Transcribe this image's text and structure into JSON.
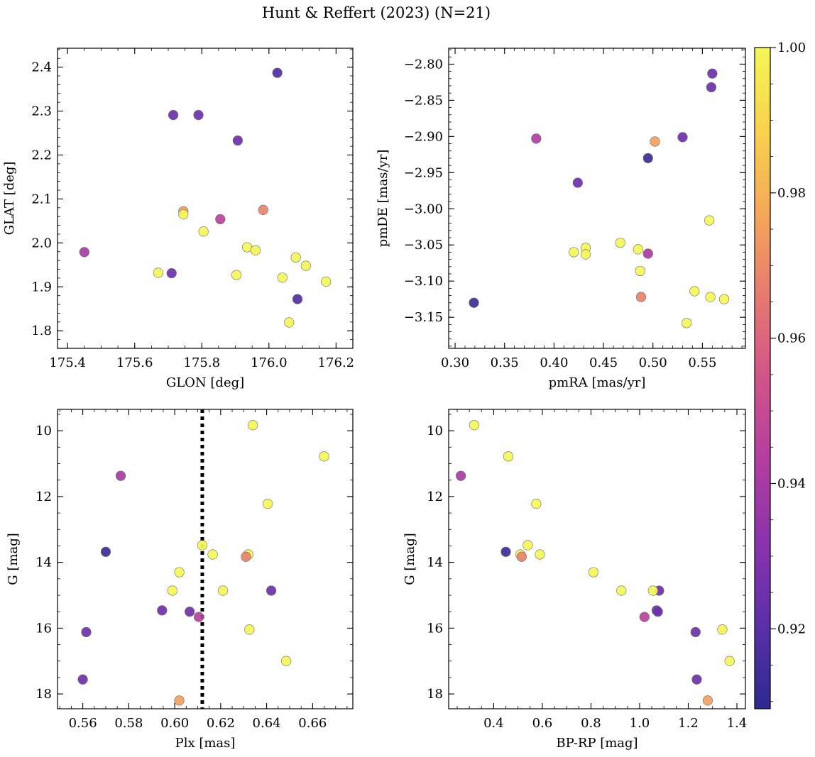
{
  "figure": {
    "title": "Hunt & Reffert (2023) (N=21)",
    "colorbar": {
      "vmin": 0.909,
      "vmax": 1.0,
      "ticks": [
        0.92,
        0.94,
        0.96,
        0.98,
        1.0
      ],
      "tick_labels": [
        "0.92",
        "0.94",
        "0.96",
        "0.98",
        "1.00"
      ],
      "colormap": "plasma",
      "gradient_colors": [
        "#2d2a8e",
        "#5b2fa7",
        "#8a33ad",
        "#b23e9f",
        "#d0548a",
        "#e57a70",
        "#f5a85a",
        "#f8d24e",
        "#f4f757"
      ]
    }
  },
  "chart_data": [
    {
      "type": "scatter",
      "id": "glon-glat",
      "xlabel": "GLON [deg]",
      "ylabel": "GLAT [deg]",
      "xlim": [
        175.37,
        176.25
      ],
      "ylim": [
        1.76,
        2.443
      ],
      "xticks": [
        175.4,
        175.6,
        175.8,
        176.0,
        176.2
      ],
      "xtick_labels": [
        "175.4",
        "175.6",
        "175.8",
        "176.0",
        "176.2"
      ],
      "yticks": [
        1.8,
        1.9,
        2.0,
        2.1,
        2.2,
        2.3,
        2.4
      ],
      "ytick_labels": [
        "1.8",
        "1.9",
        "2.0",
        "2.1",
        "2.2",
        "2.3",
        "2.4"
      ],
      "x_minor_step": 0.05,
      "y_minor_step": 0.02,
      "points": [
        {
          "x": 176.025,
          "y": 2.387,
          "c": 0.918
        },
        {
          "x": 175.715,
          "y": 2.291,
          "c": 0.925
        },
        {
          "x": 175.79,
          "y": 2.291,
          "c": 0.925
        },
        {
          "x": 175.907,
          "y": 2.233,
          "c": 0.925
        },
        {
          "x": 175.745,
          "y": 2.072,
          "c": 0.975
        },
        {
          "x": 175.983,
          "y": 2.075,
          "c": 0.968
        },
        {
          "x": 175.745,
          "y": 2.065,
          "c": 1.0
        },
        {
          "x": 175.855,
          "y": 2.054,
          "c": 0.945
        },
        {
          "x": 175.805,
          "y": 2.026,
          "c": 1.0
        },
        {
          "x": 175.45,
          "y": 1.979,
          "c": 0.94
        },
        {
          "x": 175.935,
          "y": 1.99,
          "c": 1.0
        },
        {
          "x": 175.96,
          "y": 1.983,
          "c": 1.0
        },
        {
          "x": 176.08,
          "y": 1.967,
          "c": 1.0
        },
        {
          "x": 176.11,
          "y": 1.948,
          "c": 1.0
        },
        {
          "x": 175.67,
          "y": 1.932,
          "c": 1.0
        },
        {
          "x": 175.71,
          "y": 1.931,
          "c": 0.925
        },
        {
          "x": 175.903,
          "y": 1.927,
          "c": 1.0
        },
        {
          "x": 176.04,
          "y": 1.921,
          "c": 1.0
        },
        {
          "x": 176.17,
          "y": 1.912,
          "c": 1.0
        },
        {
          "x": 176.085,
          "y": 1.872,
          "c": 0.918
        },
        {
          "x": 176.06,
          "y": 1.819,
          "c": 1.0
        }
      ]
    },
    {
      "type": "scatter",
      "id": "pmra-pmde",
      "xlabel": "pmRA [mas/yr]",
      "ylabel": "pmDE [mas/yr]",
      "xlim": [
        0.2935,
        0.5935
      ],
      "ylim": [
        -3.193,
        -2.778
      ],
      "xticks": [
        0.3,
        0.35,
        0.4,
        0.45,
        0.5,
        0.55
      ],
      "xtick_labels": [
        "0.30",
        "0.35",
        "0.40",
        "0.45",
        "0.50",
        "0.55"
      ],
      "yticks": [
        -3.15,
        -3.1,
        -3.05,
        -3.0,
        -2.95,
        -2.9,
        -2.85,
        -2.8
      ],
      "ytick_labels": [
        "−3.15",
        "−3.10",
        "−3.05",
        "−3.00",
        "−2.95",
        "−2.90",
        "−2.85",
        "−2.80"
      ],
      "x_minor_step": 0.01,
      "y_minor_step": 0.01,
      "points": [
        {
          "x": 0.56,
          "y": -2.813,
          "c": 0.925
        },
        {
          "x": 0.559,
          "y": -2.832,
          "c": 0.925
        },
        {
          "x": 0.382,
          "y": -2.903,
          "c": 0.943
        },
        {
          "x": 0.502,
          "y": -2.907,
          "c": 0.975
        },
        {
          "x": 0.53,
          "y": -2.901,
          "c": 0.925
        },
        {
          "x": 0.495,
          "y": -2.93,
          "c": 0.913
        },
        {
          "x": 0.424,
          "y": -2.964,
          "c": 0.925
        },
        {
          "x": 0.557,
          "y": -3.016,
          "c": 1.0
        },
        {
          "x": 0.467,
          "y": -3.047,
          "c": 1.0
        },
        {
          "x": 0.432,
          "y": -3.054,
          "c": 1.0
        },
        {
          "x": 0.485,
          "y": -3.056,
          "c": 1.0
        },
        {
          "x": 0.42,
          "y": -3.06,
          "c": 1.0
        },
        {
          "x": 0.432,
          "y": -3.063,
          "c": 1.0
        },
        {
          "x": 0.495,
          "y": -3.062,
          "c": 0.94
        },
        {
          "x": 0.487,
          "y": -3.086,
          "c": 1.0
        },
        {
          "x": 0.542,
          "y": -3.114,
          "c": 1.0
        },
        {
          "x": 0.488,
          "y": -3.122,
          "c": 0.968
        },
        {
          "x": 0.558,
          "y": -3.122,
          "c": 1.0
        },
        {
          "x": 0.572,
          "y": -3.125,
          "c": 1.0
        },
        {
          "x": 0.319,
          "y": -3.13,
          "c": 0.913
        },
        {
          "x": 0.534,
          "y": -3.158,
          "c": 1.0
        }
      ]
    },
    {
      "type": "scatter",
      "id": "plx-g",
      "xlabel": "Plx [mas]",
      "ylabel": "G [mag]",
      "xlim": [
        0.549,
        0.6775
      ],
      "ylim": [
        18.45,
        9.35
      ],
      "inverted_y": true,
      "vline": {
        "x": 0.612,
        "style": "dotted"
      },
      "xticks": [
        0.56,
        0.58,
        0.6,
        0.62,
        0.64,
        0.66
      ],
      "xtick_labels": [
        "0.56",
        "0.58",
        "0.60",
        "0.62",
        "0.64",
        "0.66"
      ],
      "yticks": [
        10,
        12,
        14,
        16,
        18
      ],
      "ytick_labels": [
        "10",
        "12",
        "14",
        "16",
        "18"
      ],
      "x_minor_step": 0.005,
      "y_minor_step": 0.5,
      "points": [
        {
          "x": 0.634,
          "y": 9.83,
          "c": 1.0
        },
        {
          "x": 0.665,
          "y": 10.78,
          "c": 1.0
        },
        {
          "x": 0.5765,
          "y": 11.37,
          "c": 0.94
        },
        {
          "x": 0.6405,
          "y": 12.22,
          "c": 1.0
        },
        {
          "x": 0.612,
          "y": 13.48,
          "c": 1.0
        },
        {
          "x": 0.57,
          "y": 13.68,
          "c": 0.913
        },
        {
          "x": 0.6165,
          "y": 13.76,
          "c": 1.0
        },
        {
          "x": 0.632,
          "y": 13.76,
          "c": 1.0
        },
        {
          "x": 0.631,
          "y": 13.83,
          "c": 0.968
        },
        {
          "x": 0.602,
          "y": 14.3,
          "c": 1.0
        },
        {
          "x": 0.599,
          "y": 14.86,
          "c": 1.0
        },
        {
          "x": 0.621,
          "y": 14.86,
          "c": 1.0
        },
        {
          "x": 0.642,
          "y": 14.86,
          "c": 0.925
        },
        {
          "x": 0.5945,
          "y": 15.46,
          "c": 0.925
        },
        {
          "x": 0.6065,
          "y": 15.5,
          "c": 0.925
        },
        {
          "x": 0.6105,
          "y": 15.66,
          "c": 0.945
        },
        {
          "x": 0.6325,
          "y": 16.04,
          "c": 1.0
        },
        {
          "x": 0.5615,
          "y": 16.12,
          "c": 0.925
        },
        {
          "x": 0.6485,
          "y": 17.0,
          "c": 1.0
        },
        {
          "x": 0.56,
          "y": 17.56,
          "c": 0.925
        },
        {
          "x": 0.602,
          "y": 18.2,
          "c": 0.975
        }
      ]
    },
    {
      "type": "scatter",
      "id": "bprp-g",
      "xlabel": "BP-RP [mag]",
      "ylabel": "G [mag]",
      "xlim": [
        0.215,
        1.435
      ],
      "ylim": [
        18.45,
        9.35
      ],
      "inverted_y": true,
      "xticks": [
        0.4,
        0.6,
        0.8,
        1.0,
        1.2,
        1.4
      ],
      "xtick_labels": [
        "0.4",
        "0.6",
        "0.8",
        "1.0",
        "1.2",
        "1.4"
      ],
      "yticks": [
        10,
        12,
        14,
        16,
        18
      ],
      "ytick_labels": [
        "10",
        "12",
        "14",
        "16",
        "18"
      ],
      "x_minor_step": 0.05,
      "y_minor_step": 0.5,
      "points": [
        {
          "x": 0.32,
          "y": 9.83,
          "c": 1.0
        },
        {
          "x": 0.46,
          "y": 10.78,
          "c": 1.0
        },
        {
          "x": 0.265,
          "y": 11.37,
          "c": 0.94
        },
        {
          "x": 0.575,
          "y": 12.22,
          "c": 1.0
        },
        {
          "x": 0.54,
          "y": 13.48,
          "c": 1.0
        },
        {
          "x": 0.45,
          "y": 13.68,
          "c": 0.913
        },
        {
          "x": 0.51,
          "y": 13.76,
          "c": 1.0
        },
        {
          "x": 0.59,
          "y": 13.76,
          "c": 1.0
        },
        {
          "x": 0.515,
          "y": 13.83,
          "c": 0.968
        },
        {
          "x": 0.81,
          "y": 14.3,
          "c": 1.0
        },
        {
          "x": 1.08,
          "y": 14.86,
          "c": 0.925
        },
        {
          "x": 0.925,
          "y": 14.86,
          "c": 1.0
        },
        {
          "x": 1.055,
          "y": 14.86,
          "c": 1.0
        },
        {
          "x": 1.07,
          "y": 15.46,
          "c": 0.925
        },
        {
          "x": 1.075,
          "y": 15.5,
          "c": 0.925
        },
        {
          "x": 1.02,
          "y": 15.66,
          "c": 0.945
        },
        {
          "x": 1.34,
          "y": 16.04,
          "c": 1.0
        },
        {
          "x": 1.23,
          "y": 16.12,
          "c": 0.925
        },
        {
          "x": 1.37,
          "y": 17.0,
          "c": 1.0
        },
        {
          "x": 1.235,
          "y": 17.56,
          "c": 0.925
        },
        {
          "x": 1.28,
          "y": 18.2,
          "c": 0.975
        }
      ]
    }
  ]
}
